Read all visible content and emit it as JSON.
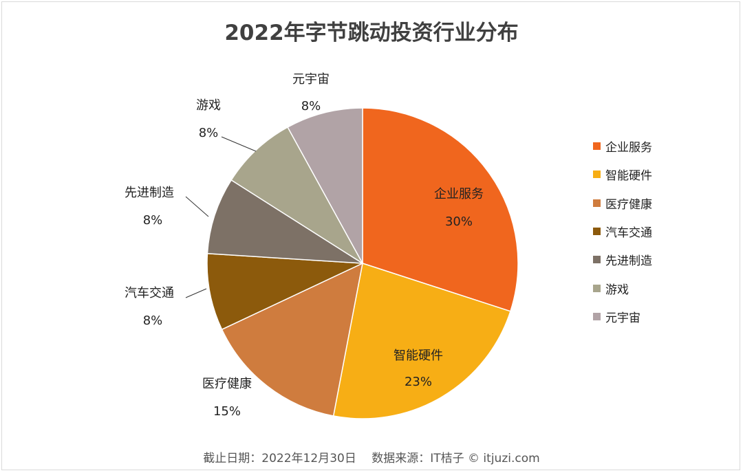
{
  "chart_data": {
    "type": "pie",
    "title": "2022年字节跳动投资行业分布",
    "categories": [
      "企业服务",
      "智能硬件",
      "医疗健康",
      "汽车交通",
      "先进制造",
      "游戏",
      "元宇宙"
    ],
    "values": [
      30,
      23,
      15,
      8,
      8,
      8,
      8
    ],
    "labels": [
      "30%",
      "23%",
      "15%",
      "8%",
      "8%",
      "8%",
      "8%"
    ],
    "colors": [
      "#F0661E",
      "#F7AE15",
      "#CF7C3E",
      "#8C5A0C",
      "#7D7166",
      "#A8A58C",
      "#B1A3A6"
    ],
    "start": "top",
    "direction": "clockwise",
    "legend_position": "right"
  },
  "footer": "截止日期：2022年12月30日　 数据来源：IT桔子 © itjuzi.com"
}
